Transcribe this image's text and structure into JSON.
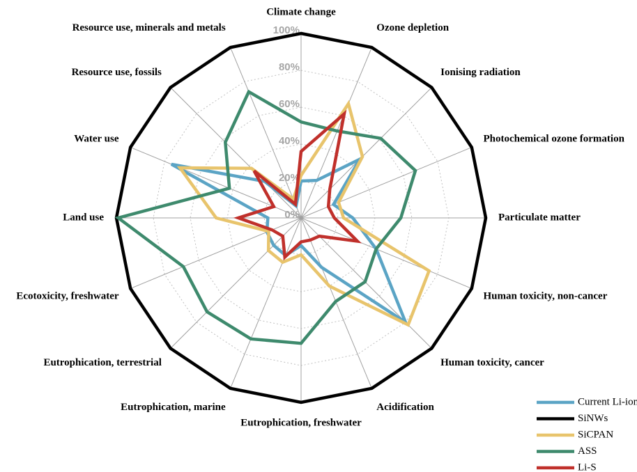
{
  "chart_data": {
    "type": "radar",
    "categories": [
      "Climate change",
      "Ozone depletion",
      "Ionising radiation",
      "Photochemical ozone formation",
      "Particulate matter",
      "Human toxicity, non-cancer",
      "Human toxicity, cancer",
      "Acidification",
      "Eutrophication, freshwater",
      "Eutrophication, marine",
      "Eutrophication, terrestrial",
      "Ecotoxicity, freshwater",
      "Land use",
      "Water use",
      "Resource use, fossils",
      "Resource use, minerals and metals"
    ],
    "series": [
      {
        "name": "Current Li-ion",
        "color": "#5ba4c5",
        "values": [
          20,
          22,
          45,
          19,
          28,
          44,
          80,
          29,
          15,
          22,
          21,
          20,
          18,
          76,
          28,
          7
        ]
      },
      {
        "name": "SiNWs",
        "color": "#000000",
        "values": [
          100,
          100,
          100,
          100,
          100,
          100,
          100,
          100,
          100,
          100,
          100,
          100,
          100,
          100,
          100,
          100
        ]
      },
      {
        "name": "SiCPAN",
        "color": "#e8c46c",
        "values": [
          23,
          67,
          47,
          22,
          23,
          75,
          82,
          40,
          20,
          26,
          25,
          19,
          46,
          71,
          38,
          11
        ]
      },
      {
        "name": "ASS",
        "color": "#3e8a6d",
        "values": [
          52,
          51,
          61,
          67,
          54,
          44,
          49,
          49,
          68,
          71,
          72,
          69,
          99,
          42,
          58,
          74
        ]
      },
      {
        "name": "Li-S",
        "color": "#c0302b",
        "values": [
          36,
          61,
          22,
          16,
          18,
          33,
          14,
          13,
          13,
          23,
          14,
          17,
          34,
          16,
          36,
          8
        ]
      }
    ],
    "rlim": [
      0,
      100
    ],
    "rticks": [
      {
        "value": 0,
        "label": "0%"
      },
      {
        "value": 20,
        "label": "20%"
      },
      {
        "value": 40,
        "label": "40%"
      },
      {
        "value": 60,
        "label": "60%"
      },
      {
        "value": 80,
        "label": "80%"
      },
      {
        "value": 100,
        "label": "100%"
      }
    ],
    "grid": true,
    "legend": "lower right"
  }
}
